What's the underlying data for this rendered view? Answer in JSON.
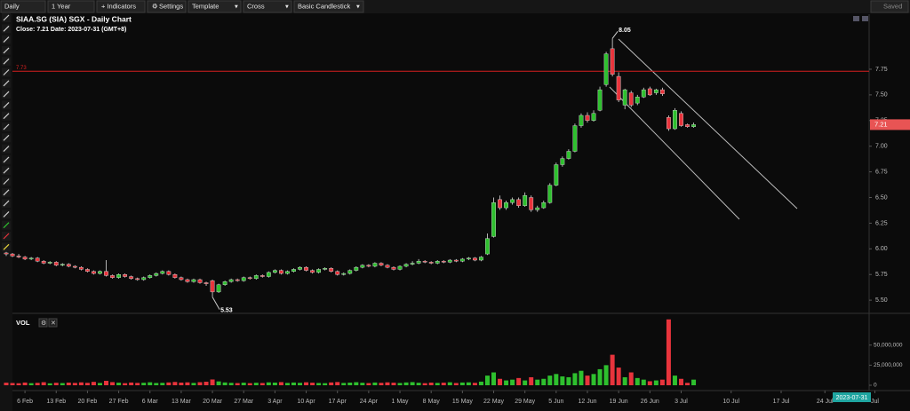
{
  "toolbar": {
    "interval": "Daily",
    "range": "1 Year",
    "indicators": "+ Indicators",
    "settings": "Settings",
    "template": "Template",
    "cursor": "Cross",
    "style": "Basic Candlestick",
    "saved": "Saved"
  },
  "chart_data": {
    "type": "candlestick",
    "title": "SIAA.SG (SIA) SGX - Daily Chart",
    "info": "Close: 7.21  Date: 2023-07-31 (GMT+8)",
    "up_color": "#2ec02e",
    "down_color": "#e8343c",
    "ylim": [
      5.38,
      8.165
    ],
    "yticks": [
      {
        "value": 5.5,
        "label": "5.50"
      },
      5.75,
      {
        "value": 6,
        "label": "6.00"
      },
      6.25,
      {
        "value": 6.5,
        "label": "6.50"
      },
      6.75,
      {
        "value": 7,
        "label": "7.00"
      },
      7.25,
      {
        "value": 7.5,
        "label": "7.50"
      },
      7.75
    ],
    "xlim": [
      0,
      139.5
    ],
    "xticks": [
      {
        "value": 3,
        "label": "6 Feb"
      },
      {
        "value": 8,
        "label": "13 Feb"
      },
      {
        "value": 13,
        "label": "20 Feb"
      },
      {
        "value": 18,
        "label": "27 Feb"
      },
      {
        "value": 23,
        "label": "6 Mar"
      },
      {
        "value": 28,
        "label": "13 Mar"
      },
      {
        "value": 33,
        "label": "20 Mar"
      },
      {
        "value": 38,
        "label": "27 Mar"
      },
      {
        "value": 43,
        "label": "3 Apr"
      },
      {
        "value": 48,
        "label": "10 Apr"
      },
      {
        "value": 53,
        "label": "17 Apr"
      },
      {
        "value": 58,
        "label": "24 Apr"
      },
      {
        "value": 63,
        "label": "1 May"
      },
      {
        "value": 68,
        "label": "8 May"
      },
      {
        "value": 73,
        "label": "15 May"
      },
      {
        "value": 78,
        "label": "22 May"
      },
      {
        "value": 83,
        "label": "29 May"
      },
      {
        "value": 88,
        "label": "5 Jun"
      },
      {
        "value": 93,
        "label": "12 Jun"
      },
      {
        "value": 98,
        "label": "19 Jun"
      },
      {
        "value": 103,
        "label": "26 Jun"
      },
      {
        "value": 108,
        "label": "3 Jul"
      },
      {
        "value": 116,
        "label": "10 Jul"
      },
      {
        "value": 124,
        "label": "17 Jul"
      },
      {
        "value": 131,
        "label": "24 Jul"
      },
      {
        "value": 139,
        "label": "Jul"
      }
    ],
    "hline": 7.73,
    "candles": [
      [
        5.96,
        5.97,
        5.93,
        5.95
      ],
      [
        5.95,
        5.96,
        5.92,
        5.93
      ],
      [
        5.93,
        5.95,
        5.91,
        5.92
      ],
      [
        5.92,
        5.93,
        5.89,
        5.9
      ],
      [
        5.9,
        5.92,
        5.89,
        5.91
      ],
      [
        5.91,
        5.92,
        5.87,
        5.88
      ],
      [
        5.88,
        5.89,
        5.85,
        5.86
      ],
      [
        5.86,
        5.88,
        5.85,
        5.87
      ],
      [
        5.87,
        5.88,
        5.83,
        5.84
      ],
      [
        5.84,
        5.86,
        5.83,
        5.85
      ],
      [
        5.85,
        5.86,
        5.82,
        5.83
      ],
      [
        5.83,
        5.84,
        5.81,
        5.82
      ],
      [
        5.82,
        5.83,
        5.79,
        5.8
      ],
      [
        5.8,
        5.81,
        5.77,
        5.78
      ],
      [
        5.78,
        5.79,
        5.75,
        5.76
      ],
      [
        5.76,
        5.79,
        5.75,
        5.78
      ],
      [
        5.78,
        5.89,
        5.73,
        5.74
      ],
      [
        5.74,
        5.75,
        5.71,
        5.72
      ],
      [
        5.72,
        5.76,
        5.71,
        5.75
      ],
      [
        5.75,
        5.76,
        5.72,
        5.73
      ],
      [
        5.73,
        5.74,
        5.7,
        5.71
      ],
      [
        5.71,
        5.72,
        5.69,
        5.7
      ],
      [
        5.7,
        5.73,
        5.69,
        5.72
      ],
      [
        5.72,
        5.75,
        5.71,
        5.74
      ],
      [
        5.74,
        5.77,
        5.73,
        5.76
      ],
      [
        5.76,
        5.79,
        5.75,
        5.78
      ],
      [
        5.78,
        5.79,
        5.74,
        5.75
      ],
      [
        5.75,
        5.76,
        5.71,
        5.72
      ],
      [
        5.72,
        5.73,
        5.69,
        5.7
      ],
      [
        5.7,
        5.71,
        5.67,
        5.68
      ],
      [
        5.68,
        5.71,
        5.67,
        5.7
      ],
      [
        5.7,
        5.71,
        5.66,
        5.67
      ],
      [
        5.67,
        5.68,
        5.64,
        5.66
      ],
      [
        5.69,
        5.7,
        5.53,
        5.58
      ],
      [
        5.58,
        5.66,
        5.57,
        5.65
      ],
      [
        5.65,
        5.69,
        5.64,
        5.68
      ],
      [
        5.68,
        5.71,
        5.67,
        5.7
      ],
      [
        5.7,
        5.71,
        5.68,
        5.69
      ],
      [
        5.69,
        5.73,
        5.68,
        5.72
      ],
      [
        5.72,
        5.73,
        5.7,
        5.71
      ],
      [
        5.71,
        5.75,
        5.7,
        5.74
      ],
      [
        5.74,
        5.75,
        5.72,
        5.73
      ],
      [
        5.73,
        5.78,
        5.72,
        5.77
      ],
      [
        5.77,
        5.8,
        5.76,
        5.79
      ],
      [
        5.79,
        5.8,
        5.75,
        5.76
      ],
      [
        5.76,
        5.79,
        5.75,
        5.78
      ],
      [
        5.78,
        5.81,
        5.77,
        5.8
      ],
      [
        5.8,
        5.83,
        5.79,
        5.82
      ],
      [
        5.82,
        5.83,
        5.78,
        5.79
      ],
      [
        5.79,
        5.8,
        5.76,
        5.77
      ],
      [
        5.77,
        5.81,
        5.76,
        5.8
      ],
      [
        5.8,
        5.82,
        5.79,
        5.81
      ],
      [
        5.81,
        5.82,
        5.77,
        5.78
      ],
      [
        5.78,
        5.79,
        5.74,
        5.75
      ],
      [
        5.75,
        5.77,
        5.74,
        5.76
      ],
      [
        5.76,
        5.8,
        5.75,
        5.79
      ],
      [
        5.79,
        5.83,
        5.78,
        5.82
      ],
      [
        5.82,
        5.85,
        5.81,
        5.84
      ],
      [
        5.84,
        5.85,
        5.82,
        5.83
      ],
      [
        5.83,
        5.87,
        5.82,
        5.86
      ],
      [
        5.86,
        5.87,
        5.83,
        5.84
      ],
      [
        5.84,
        5.85,
        5.81,
        5.82
      ],
      [
        5.82,
        5.83,
        5.79,
        5.8
      ],
      [
        5.8,
        5.84,
        5.79,
        5.83
      ],
      [
        5.83,
        5.86,
        5.82,
        5.85
      ],
      [
        5.85,
        5.88,
        5.84,
        5.86
      ],
      [
        5.86,
        5.9,
        5.85,
        5.88
      ],
      [
        5.88,
        5.89,
        5.86,
        5.87
      ],
      [
        5.87,
        5.88,
        5.85,
        5.86
      ],
      [
        5.86,
        5.89,
        5.85,
        5.88
      ],
      [
        5.88,
        5.89,
        5.86,
        5.87
      ],
      [
        5.87,
        5.9,
        5.86,
        5.89
      ],
      [
        5.89,
        5.9,
        5.87,
        5.88
      ],
      [
        5.88,
        5.91,
        5.87,
        5.9
      ],
      [
        5.9,
        5.92,
        5.89,
        5.91
      ],
      [
        5.91,
        5.92,
        5.88,
        5.89
      ],
      [
        5.89,
        5.93,
        5.88,
        5.92
      ],
      [
        5.95,
        6.15,
        5.94,
        6.1
      ],
      [
        6.12,
        6.5,
        6.11,
        6.45
      ],
      [
        6.48,
        6.52,
        6.38,
        6.4
      ],
      [
        6.4,
        6.47,
        6.38,
        6.45
      ],
      [
        6.45,
        6.5,
        6.43,
        6.48
      ],
      [
        6.48,
        6.5,
        6.4,
        6.42
      ],
      [
        6.42,
        6.55,
        6.41,
        6.52
      ],
      [
        6.5,
        6.52,
        6.36,
        6.38
      ],
      [
        6.38,
        6.42,
        6.36,
        6.4
      ],
      [
        6.4,
        6.47,
        6.39,
        6.45
      ],
      [
        6.45,
        6.64,
        6.44,
        6.62
      ],
      [
        6.62,
        6.84,
        6.61,
        6.82
      ],
      [
        6.82,
        6.9,
        6.8,
        6.88
      ],
      [
        6.88,
        6.97,
        6.87,
        6.95
      ],
      [
        6.95,
        7.22,
        6.94,
        7.2
      ],
      [
        7.2,
        7.32,
        7.18,
        7.3
      ],
      [
        7.3,
        7.33,
        7.23,
        7.25
      ],
      [
        7.25,
        7.35,
        7.24,
        7.32
      ],
      [
        7.35,
        7.58,
        7.34,
        7.55
      ],
      [
        7.6,
        7.92,
        7.58,
        7.9
      ],
      [
        7.95,
        8.05,
        7.68,
        7.7
      ],
      [
        7.68,
        7.72,
        7.43,
        7.45
      ],
      [
        7.4,
        7.56,
        7.36,
        7.55
      ],
      [
        7.52,
        7.54,
        7.38,
        7.4
      ],
      [
        7.42,
        7.5,
        7.4,
        7.48
      ],
      [
        7.48,
        7.57,
        7.47,
        7.55
      ],
      [
        7.56,
        7.58,
        7.49,
        7.5
      ],
      [
        7.52,
        7.56,
        7.5,
        7.55
      ],
      [
        7.55,
        7.57,
        7.49,
        7.51
      ],
      [
        7.28,
        7.3,
        7.15,
        7.17
      ],
      [
        7.17,
        7.37,
        7.16,
        7.35
      ],
      [
        7.32,
        7.34,
        7.19,
        7.2
      ],
      [
        7.21,
        7.22,
        7.18,
        7.19
      ],
      [
        7.19,
        7.23,
        7.18,
        7.21
      ]
    ],
    "volume_label": "VOL",
    "vlim": [
      0,
      84000000.0
    ],
    "vticks": [
      0,
      {
        "value": 25000000.0,
        "label": "25,000,000"
      },
      {
        "value": 50000000.0,
        "label": "50,000,000"
      }
    ],
    "volume": [
      3200000.0,
      2800000.0,
      2500000.0,
      3400000.0,
      2600000.0,
      3000000.0,
      3800000.0,
      2400000.0,
      3100000.0,
      2700000.0,
      3300000.0,
      2900000.0,
      3600000.0,
      3000000.0,
      4200000.0,
      2800000.0,
      5500000.0,
      3900000.0,
      3200000.0,
      2600000.0,
      3400000.0,
      2900000.0,
      3100000.0,
      3700000.0,
      2800000.0,
      3000000.0,
      3500000.0,
      4100000.0,
      3300000.0,
      3600000.0,
      2900000.0,
      3800000.0,
      4400000.0,
      7200000.0,
      4800000.0,
      3500000.0,
      3000000.0,
      2700000.0,
      3200000.0,
      2600000.0,
      3100000.0,
      2800000.0,
      3600000.0,
      3300000.0,
      3900000.0,
      2900000.0,
      3400000.0,
      3000000.0,
      3700000.0,
      3200000.0,
      2800000.0,
      2600000.0,
      3500000.0,
      4000000.0,
      2900000.0,
      3300000.0,
      3800000.0,
      3100000.0,
      2700000.0,
      3400000.0,
      3000000.0,
      3600000.0,
      3200000.0,
      2800000.0,
      3500000.0,
      3900000.0,
      3100000.0,
      2600000.0,
      3300000.0,
      2900000.0,
      3200000.0,
      3700000.0,
      2800000.0,
      3400000.0,
      3600000.0,
      3000000.0,
      4500000.0,
      12000000.0,
      16000000.0,
      8000000.0,
      6000000.0,
      7000000.0,
      9000000.0,
      6000000.0,
      10000000.0,
      7000000.0,
      8000000.0,
      12000000.0,
      14000000.0,
      11000000.0,
      10000000.0,
      15000000.0,
      18000000.0,
      12000000.0,
      14000000.0,
      20000000.0,
      25000000.0,
      38000000.0,
      22000000.0,
      10000000.0,
      16000000.0,
      9000000.0,
      7000000.0,
      5000000.0,
      6000000.0,
      7000000.0,
      82000000.0,
      12000000.0,
      8000000.0,
      3000000.0,
      7000000.0
    ],
    "crosshair_date": "2023-07-31"
  }
}
